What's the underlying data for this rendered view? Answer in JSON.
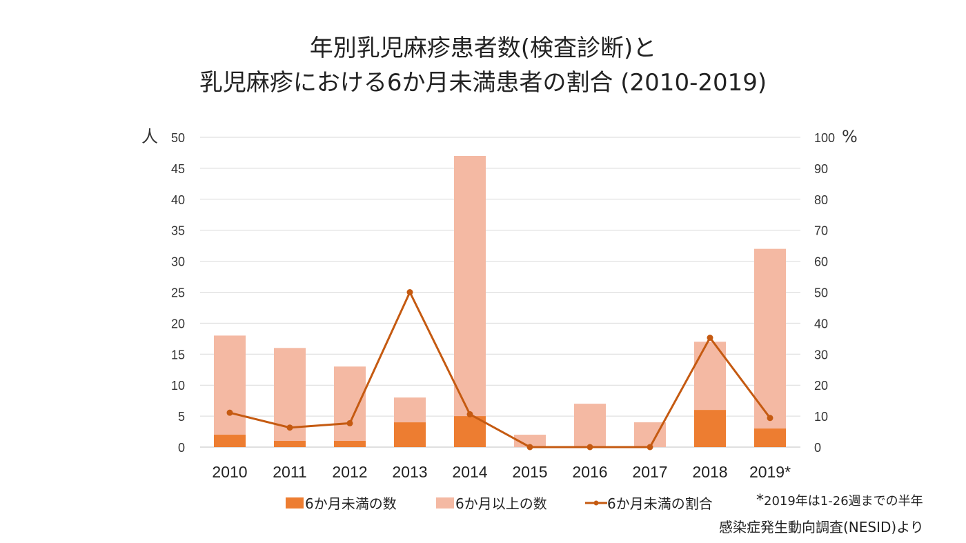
{
  "chart_data": {
    "type": "bar",
    "title_line1": "年別乳児麻疹患者数(検査診断)と",
    "title_line2": "乳児麻疹における6か月未満患者の割合 (2010-2019)",
    "categories": [
      "2010",
      "2011",
      "2012",
      "2013",
      "2014",
      "2015",
      "2016",
      "2017",
      "2018",
      "2019*"
    ],
    "series": [
      {
        "name": "6か月未満の数",
        "type": "bar",
        "stack": true,
        "axis": "left",
        "values": [
          2,
          1,
          1,
          4,
          5,
          0,
          0,
          0,
          6,
          3
        ]
      },
      {
        "name": "6か月以上の数",
        "type": "bar",
        "stack": true,
        "axis": "left",
        "values": [
          16,
          15,
          12,
          4,
          42,
          2,
          7,
          4,
          11,
          29
        ]
      },
      {
        "name": "6か月未満の割合",
        "type": "line",
        "axis": "right",
        "values": [
          11.1,
          6.3,
          7.7,
          50,
          10.6,
          0,
          0,
          0,
          35.3,
          9.4
        ]
      }
    ],
    "ylabel": "人",
    "ylabel_right": "%",
    "ylim": [
      0,
      50
    ],
    "ylim_right": [
      0,
      100
    ],
    "yticks": [
      "0",
      "5",
      "10",
      "15",
      "20",
      "25",
      "30",
      "35",
      "40",
      "45",
      "50"
    ],
    "yticks_right": [
      "0",
      "10",
      "20",
      "30",
      "40",
      "50",
      "60",
      "70",
      "80",
      "90",
      "100"
    ],
    "grid": true,
    "legend": "bottom",
    "footnote": "2019年は1-26週までの半年",
    "footnote_mark": "*",
    "source": "感染症発生動向調査(NESID)より",
    "colors": {
      "under6": "#ED7D31",
      "over6": "#F4B9A3",
      "line": "#C55A11",
      "grid": "#D9D9D9"
    }
  }
}
